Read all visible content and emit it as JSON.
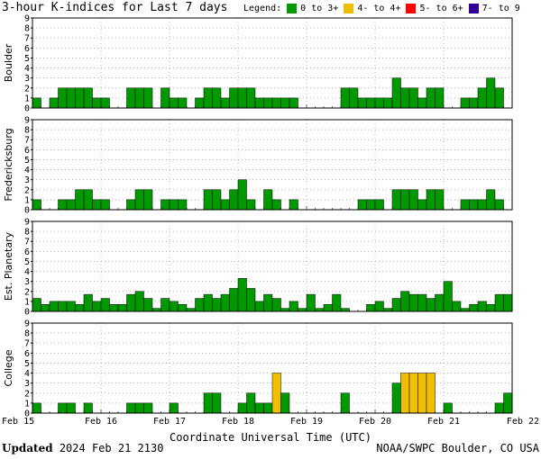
{
  "title": "3-hour K-indices for Last 7 days",
  "legend": {
    "label": "Legend:",
    "items": [
      {
        "label": "0 to 3+",
        "color": "#009900"
      },
      {
        "label": "4- to 4+",
        "color": "#f0c000"
      },
      {
        "label": "5- to 6+",
        "color": "#ff0000"
      },
      {
        "label": "7- to 9",
        "color": "#330099"
      }
    ]
  },
  "footer": {
    "updated_label": "Updated",
    "updated_value": "2024 Feb 21 2130",
    "credit": "NOAA/SWPC Boulder, CO USA"
  },
  "chart_data": {
    "type": "bar",
    "xlabel": "Coordinate Universal Time (UTC)",
    "x_ticks": [
      "Feb 15",
      "Feb 16",
      "Feb 17",
      "Feb 18",
      "Feb 19",
      "Feb 20",
      "Feb 21",
      "Feb 22"
    ],
    "ylim": [
      0,
      9
    ],
    "y_ticks": [
      0,
      1,
      2,
      3,
      4,
      5,
      6,
      7,
      8,
      9
    ],
    "grid": true,
    "bins_per_day": 8,
    "panels": [
      {
        "name": "Boulder",
        "values": [
          1,
          0,
          1,
          2,
          2,
          2,
          2,
          1,
          1,
          0,
          0,
          2,
          2,
          2,
          0,
          2,
          1,
          1,
          0,
          1,
          2,
          2,
          1,
          2,
          2,
          2,
          1,
          1,
          1,
          1,
          1,
          0,
          0,
          0,
          0,
          0,
          2,
          2,
          1,
          1,
          1,
          1,
          3,
          2,
          2,
          1,
          2,
          2,
          0,
          0,
          1,
          1,
          2,
          3,
          2,
          0
        ]
      },
      {
        "name": "Fredericksburg",
        "values": [
          1,
          0,
          0,
          1,
          1,
          2,
          2,
          1,
          1,
          0,
          0,
          1,
          2,
          2,
          0,
          1,
          1,
          1,
          0,
          0,
          2,
          2,
          1,
          2,
          3,
          1,
          0,
          2,
          1,
          0,
          1,
          0,
          0,
          0,
          0,
          0,
          0,
          0,
          1,
          1,
          1,
          0,
          2,
          2,
          2,
          1,
          2,
          2,
          0,
          0,
          1,
          1,
          1,
          2,
          1,
          0
        ]
      },
      {
        "name": "Est. Planetary",
        "values": [
          1.3,
          0.7,
          1,
          1,
          1,
          0.7,
          1.7,
          1,
          1.3,
          0.7,
          0.7,
          1.7,
          2,
          1.3,
          0.3,
          1.3,
          1,
          0.7,
          0.3,
          1.3,
          1.7,
          1.3,
          1.7,
          2.3,
          3.3,
          2.3,
          1,
          1.7,
          1.3,
          0.3,
          1,
          0.3,
          1.7,
          0.3,
          0.7,
          1.7,
          0.3,
          0,
          0,
          0.7,
          1,
          0.3,
          1.3,
          2,
          1.7,
          1.7,
          1.3,
          1.7,
          3,
          1,
          0.3,
          0.7,
          1,
          0.7,
          1.7,
          1.7
        ]
      },
      {
        "name": "College",
        "values": [
          1,
          0,
          0,
          1,
          1,
          0,
          1,
          0,
          0,
          0,
          0,
          1,
          1,
          1,
          0,
          0,
          1,
          0,
          0,
          0,
          2,
          2,
          0,
          0,
          1,
          2,
          1,
          1,
          4,
          2,
          0,
          0,
          0,
          0,
          0,
          0,
          2,
          0,
          0,
          0,
          0,
          0,
          3,
          4,
          4,
          4,
          4,
          0,
          1,
          0,
          0,
          0,
          0,
          0,
          1,
          2
        ]
      }
    ]
  }
}
